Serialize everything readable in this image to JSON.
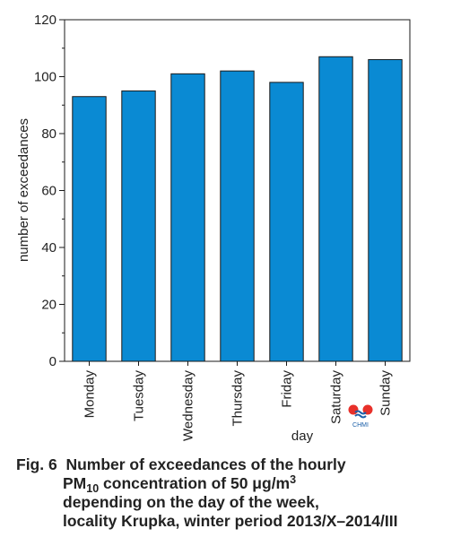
{
  "chart_data": {
    "type": "bar",
    "categories": [
      "Monday",
      "Tuesday",
      "Wednesday",
      "Thursday",
      "Friday",
      "Saturday",
      "Sunday"
    ],
    "values": [
      93,
      95,
      101,
      102,
      98,
      107,
      106
    ],
    "xlabel": "day",
    "ylabel": "number of exceedances",
    "ylim": [
      0,
      120
    ],
    "yticks": [
      0,
      20,
      40,
      60,
      80,
      100,
      120
    ],
    "grid": false,
    "bar_color": "#0a8ad3",
    "bar_edge_color": "#1a1a1a"
  },
  "logo": {
    "text": "CHMI",
    "colors": {
      "dots": "#e8302a",
      "waves": "#1a5fa8"
    }
  },
  "caption": {
    "fig_label": "Fig. 6",
    "line1": "Number of exceedances of the hourly",
    "pm": "PM",
    "pm_sub": "10",
    "conc": " concentration of 50 μg/m",
    "unit_sup": "3",
    "line3": "depending on the day of the week,",
    "line4": "locality Krupka, winter period 2013/X–2014/III"
  }
}
